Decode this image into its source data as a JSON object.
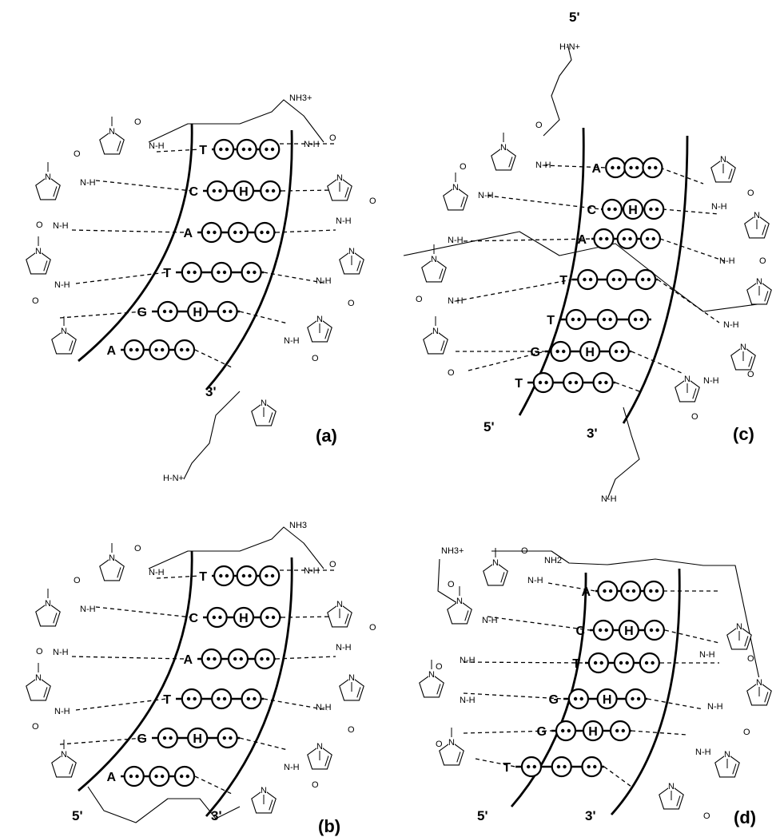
{
  "panels": [
    {
      "id": "a",
      "label": "(a)",
      "strand_labels": {
        "five_prime": "",
        "three_prime": "3'"
      },
      "base_pairs": [
        {
          "base": "T",
          "hbond": [
            false,
            false,
            false
          ]
        },
        {
          "base": "C",
          "hbond": [
            false,
            true,
            false
          ]
        },
        {
          "base": "A",
          "hbond": [
            false,
            false,
            false
          ]
        },
        {
          "base": "T",
          "hbond": [
            false,
            false,
            false
          ]
        },
        {
          "base": "G",
          "hbond": [
            false,
            true,
            false
          ]
        },
        {
          "base": "A",
          "hbond": [
            false,
            false,
            false
          ]
        }
      ],
      "chem_labels": {
        "nh3_top": "NH3+",
        "n_terminal": "H-N+",
        "nh": "N-H",
        "h": "H",
        "o": "O",
        "n": "N"
      }
    },
    {
      "id": "b",
      "label": "(b)",
      "strand_labels": {
        "five_prime": "5'",
        "three_prime": "3'"
      },
      "base_pairs": [
        {
          "base": "T",
          "hbond": [
            false,
            false,
            false
          ]
        },
        {
          "base": "C",
          "hbond": [
            false,
            true,
            false
          ]
        },
        {
          "base": "A",
          "hbond": [
            false,
            false,
            false
          ]
        },
        {
          "base": "T",
          "hbond": [
            false,
            false,
            false
          ]
        },
        {
          "base": "G",
          "hbond": [
            false,
            true,
            false
          ]
        },
        {
          "base": "A",
          "hbond": [
            false,
            false,
            false
          ]
        }
      ],
      "chem_labels": {
        "nh3_top": "NH3",
        "nh": "N-H",
        "h": "H",
        "o": "O",
        "n": "N"
      }
    },
    {
      "id": "c",
      "label": "(c)",
      "strand_labels": {
        "five_prime": "5'",
        "three_prime": "3'",
        "five_prime_top": "5'"
      },
      "base_pairs": [
        {
          "base": "A",
          "hbond": [
            false,
            false,
            false
          ]
        },
        {
          "base": "C",
          "hbond": [
            false,
            true,
            false
          ]
        },
        {
          "base": "A",
          "hbond": [
            false,
            false,
            false
          ]
        },
        {
          "base": "T",
          "hbond": [
            false,
            false,
            false
          ]
        },
        {
          "base": "T",
          "hbond": [
            false,
            false,
            false
          ]
        },
        {
          "base": "G",
          "hbond": [
            false,
            true,
            false
          ]
        },
        {
          "base": "T",
          "hbond": [
            false,
            false,
            false
          ]
        }
      ],
      "chem_labels": {
        "top_amine": "H-N+",
        "bottom_amine": "N-H",
        "nh": "N-H",
        "h": "H",
        "o": "O",
        "n": "N"
      }
    },
    {
      "id": "d",
      "label": "(d)",
      "strand_labels": {
        "five_prime": "5'",
        "three_prime": "3'"
      },
      "base_pairs": [
        {
          "base": "A",
          "hbond": [
            false,
            false,
            false
          ]
        },
        {
          "base": "C",
          "hbond": [
            false,
            true,
            false
          ]
        },
        {
          "base": "T",
          "hbond": [
            false,
            false,
            false
          ]
        },
        {
          "base": "G",
          "hbond": [
            false,
            true,
            false
          ]
        },
        {
          "base": "G",
          "hbond": [
            false,
            true,
            false
          ]
        },
        {
          "base": "T",
          "hbond": [
            false,
            false,
            false
          ]
        }
      ],
      "chem_labels": {
        "nh3_top": "NH3+",
        "nh2": "NH2",
        "nh": "N-H",
        "h": "H",
        "o": "O",
        "n": "N"
      }
    }
  ],
  "colors": {
    "ink": "#000000",
    "paper": "#ffffff"
  }
}
